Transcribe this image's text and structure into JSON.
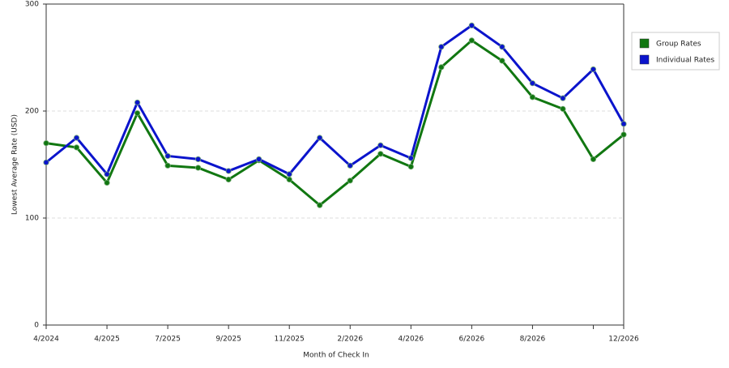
{
  "chart_data": {
    "type": "line",
    "x_label": "Month of Check In",
    "y_label": "Lowest Average Rate (USD)",
    "categories": [
      "4/2024",
      null,
      "4/2025",
      null,
      "7/2025",
      null,
      "9/2025",
      null,
      "11/2025",
      null,
      "2/2026",
      null,
      "4/2026",
      null,
      "6/2026",
      null,
      "8/2026",
      null,
      null,
      "12/2026"
    ],
    "series": [
      {
        "name": "Group Rates",
        "color": "#117711",
        "values": [
          170,
          166,
          133,
          198,
          149,
          147,
          136,
          154,
          136,
          112,
          135,
          160,
          148,
          241,
          266,
          247,
          213,
          202,
          155,
          178
        ]
      },
      {
        "name": "Individual Rates",
        "color": "#0b14cc",
        "values": [
          152,
          175,
          141,
          208,
          158,
          155,
          144,
          155,
          141,
          175,
          149,
          168,
          156,
          260,
          280,
          260,
          226,
          212,
          239,
          188
        ]
      }
    ],
    "ylim": [
      0,
      300
    ],
    "yticks": [
      0,
      100,
      200,
      300
    ],
    "grid": true
  }
}
